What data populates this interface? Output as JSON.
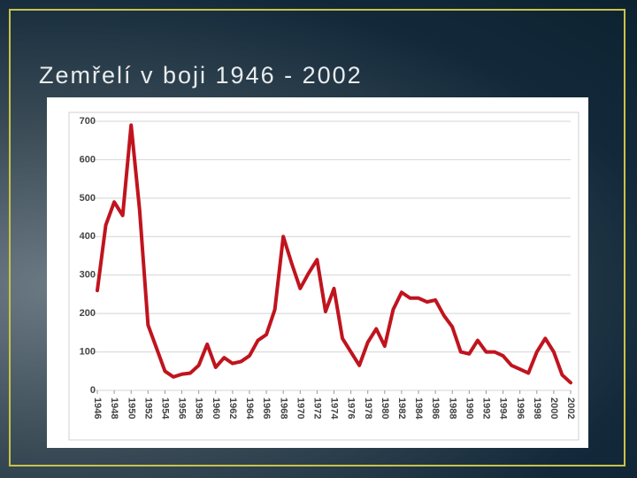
{
  "chart_data": {
    "type": "line",
    "title": "Zemřelí v boji 1946 - 2002",
    "x": [
      1946,
      1947,
      1948,
      1949,
      1950,
      1951,
      1952,
      1953,
      1954,
      1955,
      1956,
      1957,
      1958,
      1959,
      1960,
      1961,
      1962,
      1963,
      1964,
      1965,
      1966,
      1967,
      1968,
      1969,
      1970,
      1971,
      1972,
      1973,
      1974,
      1975,
      1976,
      1977,
      1978,
      1979,
      1980,
      1981,
      1982,
      1983,
      1984,
      1985,
      1986,
      1987,
      1988,
      1989,
      1990,
      1991,
      1992,
      1993,
      1994,
      1995,
      1996,
      1997,
      1998,
      1999,
      2000,
      2001,
      2002
    ],
    "values": [
      260,
      430,
      490,
      455,
      690,
      470,
      170,
      110,
      50,
      35,
      42,
      45,
      65,
      120,
      60,
      85,
      70,
      75,
      90,
      130,
      145,
      210,
      400,
      330,
      265,
      305,
      340,
      205,
      265,
      135,
      100,
      65,
      125,
      160,
      115,
      210,
      255,
      240,
      240,
      230,
      235,
      195,
      165,
      100,
      95,
      130,
      100,
      100,
      90,
      65,
      55,
      45,
      100,
      135,
      100,
      40,
      20
    ],
    "color": "#c0141e",
    "xlim": [
      1946,
      2002
    ],
    "xticks": [
      1946,
      1948,
      1950,
      1952,
      1954,
      1956,
      1958,
      1960,
      1962,
      1964,
      1966,
      1968,
      1970,
      1972,
      1974,
      1976,
      1978,
      1980,
      1982,
      1984,
      1986,
      1988,
      1990,
      1992,
      1994,
      1996,
      1998,
      2000,
      2002
    ],
    "ylim": [
      0,
      700
    ],
    "yticks": [
      0,
      100,
      200,
      300,
      400,
      500,
      600,
      700
    ],
    "grid": true
  }
}
